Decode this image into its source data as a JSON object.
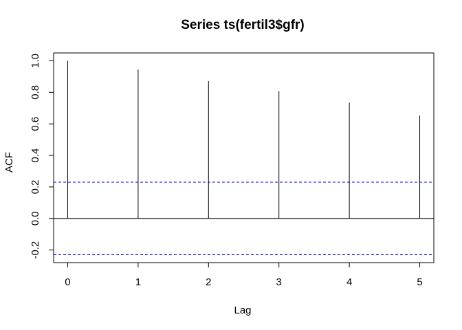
{
  "chart_data": {
    "type": "bar",
    "title": "Series  ts(fertil3$gfr)",
    "xlabel": "Lag",
    "ylabel": "ACF",
    "x": [
      0,
      1,
      2,
      3,
      4,
      5
    ],
    "values": [
      1.0,
      0.945,
      0.872,
      0.808,
      0.735,
      0.652
    ],
    "confidence_bound": 0.23,
    "xlim": [
      -0.2,
      5.2
    ],
    "ylim": [
      -0.28,
      1.05
    ],
    "xticks": [
      "0",
      "1",
      "2",
      "3",
      "4",
      "5"
    ],
    "yticks": [
      "-0.2",
      "0.0",
      "0.2",
      "0.4",
      "0.6",
      "0.8",
      "1.0"
    ],
    "grid": false,
    "bound_color": "#0000ff"
  }
}
